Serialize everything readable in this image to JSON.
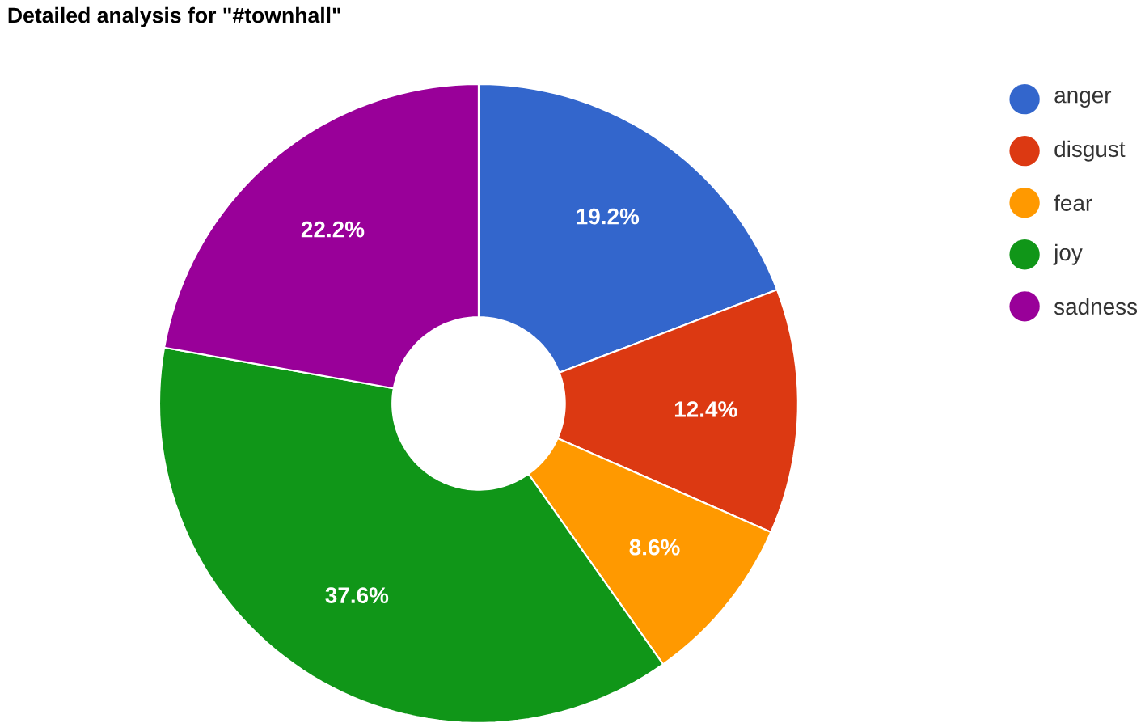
{
  "chart_data": {
    "type": "donut",
    "title": "Detailed analysis for \"#townhall\"",
    "categories": [
      "anger",
      "disgust",
      "fear",
      "joy",
      "sadness"
    ],
    "values": [
      19.2,
      12.4,
      8.6,
      37.6,
      22.2
    ],
    "colors": [
      "#3366cc",
      "#dc3912",
      "#ff9900",
      "#109618",
      "#990099"
    ],
    "value_labels": [
      "19.2%",
      "12.4%",
      "8.6%",
      "37.6%",
      "22.2%"
    ],
    "legend": "right"
  }
}
